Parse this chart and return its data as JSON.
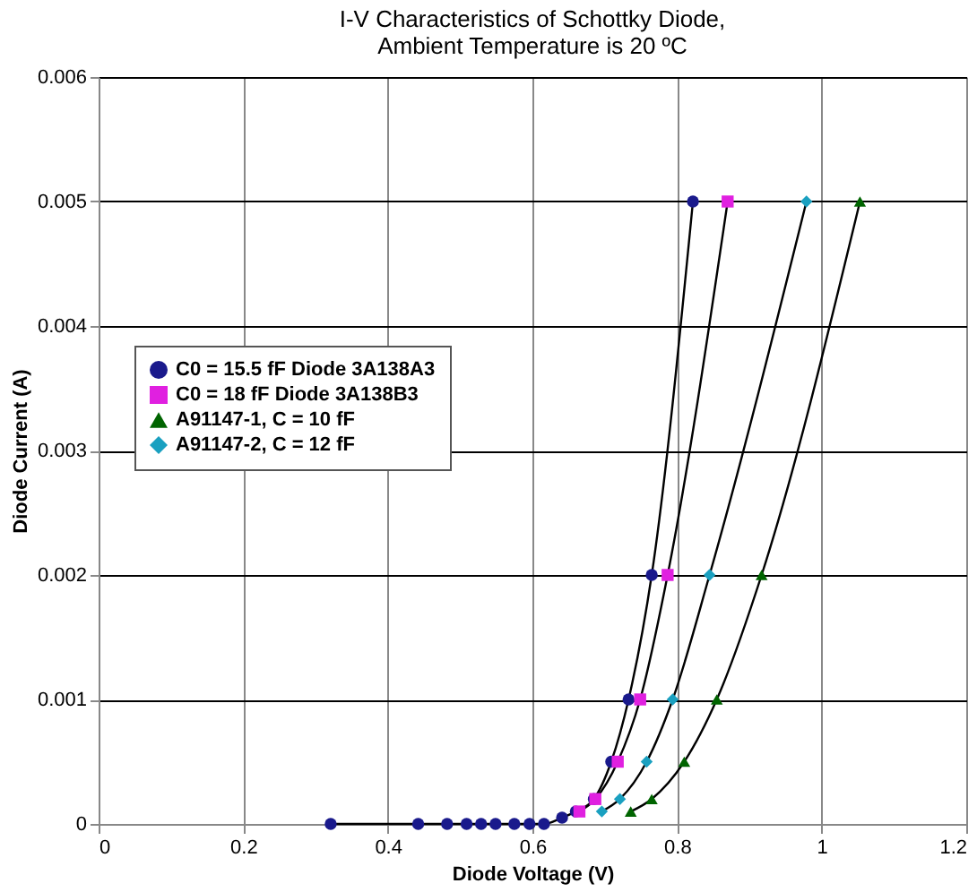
{
  "chart_data": {
    "type": "line",
    "title": [
      "I-V Characteristics of Schottky Diode,",
      "Ambient Temperature is 20 ºC"
    ],
    "xlabel": "Diode Voltage (V)",
    "ylabel": "Diode Current (A)",
    "xlim": [
      0,
      1.2
    ],
    "xticks": [
      0,
      0.2,
      0.4,
      0.6,
      0.8,
      1,
      1.2
    ],
    "ylim": [
      0,
      0.006
    ],
    "yticks": [
      0,
      0.001,
      0.002,
      0.003,
      0.004,
      0.005,
      0.006
    ],
    "grid": true,
    "legend": "left",
    "line_style": "solid",
    "series": [
      {
        "name": "C0 = 15.5 fF Diode 3A138A3",
        "color": "#1a1a8c",
        "marker": "circle",
        "x": [
          0.321,
          0.442,
          0.482,
          0.509,
          0.529,
          0.549,
          0.575,
          0.596,
          0.616,
          0.641,
          0.66,
          0.685,
          0.709,
          0.733,
          0.765,
          0.822
        ],
        "values": [
          0,
          0,
          0,
          0,
          0,
          0,
          0,
          0,
          0,
          5e-05,
          0.0001,
          0.0002,
          0.0005,
          0.001,
          0.002,
          0.005
        ]
      },
      {
        "name": "C0 = 18 fF Diode 3A138B3",
        "color": "#e020e0",
        "marker": "square",
        "x": [
          0.665,
          0.687,
          0.718,
          0.749,
          0.787,
          0.87
        ],
        "values": [
          0.0001,
          0.0002,
          0.0005,
          0.001,
          0.002,
          0.005
        ]
      },
      {
        "name": "A91147-1, C = 10 fF",
        "color": "#006400",
        "marker": "triangle",
        "x": [
          0.736,
          0.765,
          0.81,
          0.855,
          0.917,
          1.053
        ],
        "values": [
          0.0001,
          0.0002,
          0.0005,
          0.001,
          0.002,
          0.005
        ]
      },
      {
        "name": "A91147-2, C = 12 fF",
        "color": "#1aa0c0",
        "marker": "diamond",
        "x": [
          0.696,
          0.721,
          0.758,
          0.794,
          0.845,
          0.979
        ],
        "values": [
          0.0001,
          0.0002,
          0.0005,
          0.001,
          0.002,
          0.005
        ]
      }
    ]
  }
}
